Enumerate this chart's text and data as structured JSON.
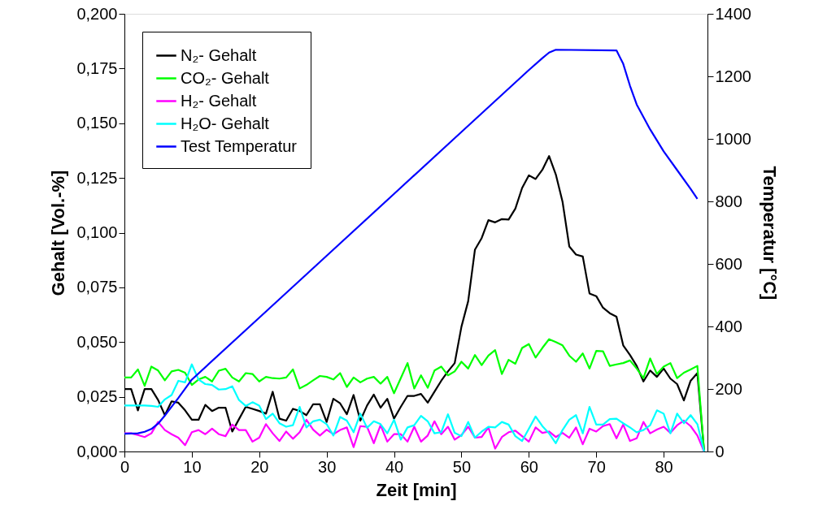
{
  "chart_data": {
    "type": "line",
    "xlabel": "Zeit [min]",
    "ylabel": "Gehalt [Vol.-%]",
    "y2label": "Temperatur [°C]",
    "x": [
      0,
      1,
      2,
      3,
      4,
      5,
      6,
      7,
      8,
      9,
      10,
      11,
      12,
      13,
      14,
      15,
      16,
      17,
      18,
      19,
      20,
      21,
      22,
      23,
      24,
      25,
      26,
      27,
      28,
      29,
      30,
      31,
      32,
      33,
      34,
      35,
      36,
      37,
      38,
      39,
      40,
      41,
      42,
      43,
      44,
      45,
      46,
      47,
      48,
      49,
      50,
      51,
      52,
      53,
      54,
      55,
      56,
      57,
      58,
      59,
      60,
      61,
      62,
      63,
      64,
      65,
      66,
      67,
      68,
      69,
      70,
      71,
      72,
      73,
      74,
      75,
      76,
      77,
      78,
      79,
      80,
      81,
      82,
      83,
      84,
      85,
      86
    ],
    "series": [
      {
        "name": "N₂- Gehalt",
        "color": "#000000",
        "values": [
          0.0285,
          0.0285,
          0.0188,
          0.0285,
          0.0285,
          0.0235,
          0.0166,
          0.0229,
          0.0223,
          0.0188,
          0.0145,
          0.0145,
          0.0213,
          0.0185,
          0.02,
          0.02,
          0.0091,
          0.0148,
          0.0204,
          0.0195,
          0.0185,
          0.0173,
          0.0273,
          0.015,
          0.0141,
          0.0195,
          0.0185,
          0.0166,
          0.0216,
          0.0216,
          0.0135,
          0.0241,
          0.022,
          0.017,
          0.0258,
          0.0141,
          0.021,
          0.026,
          0.02,
          0.0241,
          0.015,
          0.0204,
          0.0254,
          0.0254,
          0.0263,
          0.0223,
          0.0273,
          0.0323,
          0.0366,
          0.0404,
          0.057,
          0.0687,
          0.0922,
          0.0975,
          0.1057,
          0.1047,
          0.1062,
          0.106,
          0.111,
          0.1204,
          0.1262,
          0.1245,
          0.1287,
          0.135,
          0.1266,
          0.1141,
          0.0937,
          0.09,
          0.0891,
          0.0722,
          0.071,
          0.0657,
          0.0632,
          0.0616,
          0.0485,
          0.0441,
          0.0391,
          0.032,
          0.037,
          0.0341,
          0.0379,
          0.0333,
          0.0308,
          0.0233,
          0.0323,
          0.0358,
          0
        ]
      },
      {
        "name": "CO₂- Gehalt",
        "color": "#00ff00",
        "values": [
          0.0338,
          0.0338,
          0.0375,
          0.03,
          0.0388,
          0.037,
          0.0325,
          0.0366,
          0.0373,
          0.036,
          0.0304,
          0.0329,
          0.0341,
          0.032,
          0.0369,
          0.0378,
          0.0338,
          0.032,
          0.0358,
          0.0354,
          0.032,
          0.0341,
          0.0335,
          0.0333,
          0.0338,
          0.0375,
          0.0288,
          0.0304,
          0.0325,
          0.0345,
          0.0341,
          0.0329,
          0.0358,
          0.0295,
          0.0338,
          0.0316,
          0.0333,
          0.0341,
          0.031,
          0.0341,
          0.0266,
          0.0335,
          0.0404,
          0.0288,
          0.0348,
          0.0291,
          0.037,
          0.0388,
          0.0348,
          0.0366,
          0.041,
          0.0379,
          0.0441,
          0.0395,
          0.0438,
          0.0463,
          0.0354,
          0.0419,
          0.0401,
          0.0473,
          0.0491,
          0.0429,
          0.0473,
          0.0513,
          0.05,
          0.0485,
          0.0438,
          0.041,
          0.0448,
          0.0379,
          0.046,
          0.0458,
          0.0391,
          0.0398,
          0.0404,
          0.0416,
          0.0379,
          0.0335,
          0.0425,
          0.0354,
          0.0388,
          0.0404,
          0.0335,
          0.036,
          0.0375,
          0.0391,
          0
        ]
      },
      {
        "name": "H₂- Gehalt",
        "color": "#ff00ff",
        "values": [
          0.0083,
          0.0083,
          0.0075,
          0.0066,
          0.0083,
          0.0135,
          0.0098,
          0.0079,
          0.0063,
          0.0029,
          0.0088,
          0.0098,
          0.0079,
          0.0104,
          0.0079,
          0.007,
          0.0123,
          0.0098,
          0.0098,
          0.0045,
          0.0063,
          0.0125,
          0.0083,
          0.0048,
          0.0091,
          0.0058,
          0.0088,
          0.0145,
          0.01,
          0.0073,
          0.01,
          0.0079,
          0.0098,
          0.011,
          0.002,
          0.0116,
          0.0113,
          0.0038,
          0.012,
          0.0045,
          0.0079,
          0.0079,
          0.0045,
          0.0113,
          0.0045,
          0.0073,
          0.0138,
          0.0079,
          0.0113,
          0.0054,
          0.0075,
          0.0113,
          0.0063,
          0.0066,
          0.011,
          0.0013,
          0.0066,
          0.0088,
          0.0095,
          0.007,
          0.0045,
          0.011,
          0.0085,
          0.0091,
          0.0066,
          0.0085,
          0.0063,
          0.011,
          0.0033,
          0.0104,
          0.0091,
          0.0116,
          0.0125,
          0.006,
          0.0123,
          0.0048,
          0.006,
          0.0135,
          0.0083,
          0.01,
          0.0113,
          0.0085,
          0.012,
          0.0141,
          0.0116,
          0.0073,
          0
        ]
      },
      {
        "name": "H₂O- Gehalt",
        "color": "#00ffff",
        "values": [
          0.021,
          0.021,
          0.021,
          0.021,
          0.0208,
          0.0204,
          0.0238,
          0.0258,
          0.0323,
          0.0316,
          0.0398,
          0.0329,
          0.0308,
          0.0304,
          0.0283,
          0.0285,
          0.0298,
          0.0235,
          0.0208,
          0.0225,
          0.021,
          0.0148,
          0.0173,
          0.0129,
          0.0113,
          0.012,
          0.0204,
          0.011,
          0.0138,
          0.0145,
          0.0125,
          0.0073,
          0.0158,
          0.0141,
          0.0088,
          0.0173,
          0.0108,
          0.0138,
          0.0125,
          0.0083,
          0.0145,
          0.0054,
          0.011,
          0.012,
          0.0163,
          0.0138,
          0.0083,
          0.0088,
          0.017,
          0.0085,
          0.007,
          0.0135,
          0.0063,
          0.0091,
          0.0113,
          0.011,
          0.0135,
          0.0123,
          0.007,
          0.0048,
          0.0104,
          0.016,
          0.0116,
          0.0083,
          0.0038,
          0.0098,
          0.0145,
          0.0166,
          0.0083,
          0.0204,
          0.0123,
          0.0123,
          0.0148,
          0.015,
          0.0129,
          0.011,
          0.0088,
          0.0098,
          0.012,
          0.0188,
          0.0173,
          0.0083,
          0.0173,
          0.0129,
          0.0166,
          0.0125,
          0
        ]
      },
      {
        "name": "Test Temperatur",
        "color": "#0000ff",
        "axis": "y2",
        "x": [
          0,
          2,
          3,
          4,
          5,
          6,
          8,
          10,
          20,
          30,
          40,
          50,
          60,
          62,
          63,
          64,
          73,
          74,
          75,
          76,
          78,
          80,
          82,
          84,
          85
        ],
        "values": [
          57,
          58,
          63,
          72,
          89,
          115,
          171,
          230,
          428,
          626,
          824,
          1022,
          1220,
          1258,
          1276,
          1285,
          1283,
          1240,
          1170,
          1110,
          1030,
          960,
          900,
          840,
          808
        ]
      }
    ],
    "xlim": [
      0,
      86.5
    ],
    "xticks": [
      0,
      10,
      20,
      30,
      40,
      50,
      60,
      70,
      80
    ],
    "ylim": [
      0,
      0.2
    ],
    "yticks": [
      {
        "value": 0,
        "label": "0,000"
      },
      {
        "value": 0.025,
        "label": "0,025"
      },
      {
        "value": 0.05,
        "label": "0,050"
      },
      {
        "value": 0.075,
        "label": "0,075"
      },
      {
        "value": 0.1,
        "label": "0,100"
      },
      {
        "value": 0.125,
        "label": "0,125"
      },
      {
        "value": 0.15,
        "label": "0,150"
      },
      {
        "value": 0.175,
        "label": "0,175"
      },
      {
        "value": 0.2,
        "label": "0,200"
      }
    ],
    "y2lim": [
      0,
      1400
    ],
    "y2ticks": [
      0,
      200,
      400,
      600,
      800,
      1000,
      1200,
      1400
    ],
    "grid": false,
    "legend": "top left",
    "line_style": "solid",
    "marker": "none"
  }
}
